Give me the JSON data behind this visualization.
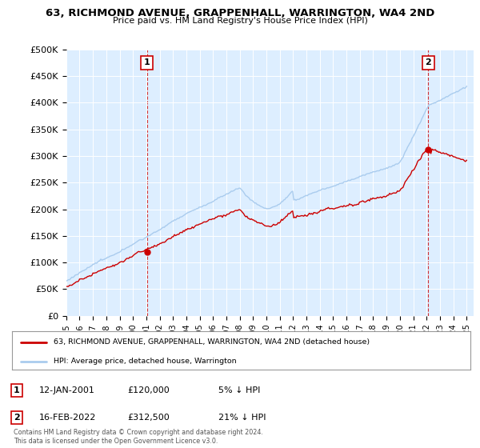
{
  "title": "63, RICHMOND AVENUE, GRAPPENHALL, WARRINGTON, WA4 2ND",
  "subtitle": "Price paid vs. HM Land Registry's House Price Index (HPI)",
  "ylabel_ticks": [
    "£0",
    "£50K",
    "£100K",
    "£150K",
    "£200K",
    "£250K",
    "£300K",
    "£350K",
    "£400K",
    "£450K",
    "£500K"
  ],
  "ytick_values": [
    0,
    50000,
    100000,
    150000,
    200000,
    250000,
    300000,
    350000,
    400000,
    450000,
    500000
  ],
  "xlim_start": 1995.0,
  "xlim_end": 2025.5,
  "ylim": [
    0,
    500000
  ],
  "sale1_x": 2001.04,
  "sale1_y": 120000,
  "sale2_x": 2022.13,
  "sale2_y": 312500,
  "sale_color": "#cc0000",
  "hpi_color": "#5599cc",
  "hpi_color_light": "#aaccee",
  "annotation_box_color": "#cc0000",
  "legend_line1": "63, RICHMOND AVENUE, GRAPPENHALL, WARRINGTON, WA4 2ND (detached house)",
  "legend_line2": "HPI: Average price, detached house, Warrington",
  "ann1_label": "1",
  "ann1_date": "12-JAN-2001",
  "ann1_price": "£120,000",
  "ann1_hpi": "5% ↓ HPI",
  "ann2_label": "2",
  "ann2_date": "16-FEB-2022",
  "ann2_price": "£312,500",
  "ann2_hpi": "21% ↓ HPI",
  "footer": "Contains HM Land Registry data © Crown copyright and database right 2024.\nThis data is licensed under the Open Government Licence v3.0.",
  "background_color": "#ffffff",
  "plot_bg_color": "#ddeeff"
}
